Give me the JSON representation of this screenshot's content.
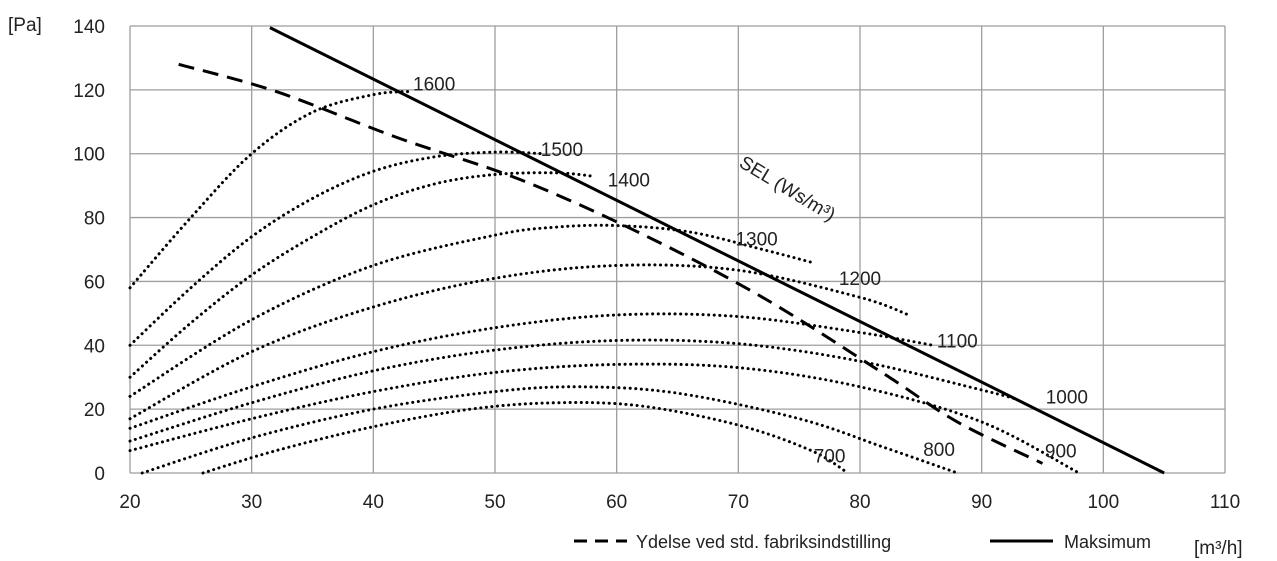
{
  "chart_data": {
    "type": "line",
    "title": "",
    "y_unit": "[Pa]",
    "x_unit": "[m³/h]",
    "xlim": [
      20,
      110
    ],
    "ylim": [
      0,
      140
    ],
    "x_ticks": [
      "20",
      "30",
      "40",
      "50",
      "60",
      "70",
      "80",
      "90",
      "100",
      "110"
    ],
    "y_ticks": [
      "0",
      "20",
      "40",
      "60",
      "80",
      "100",
      "120",
      "140"
    ],
    "grid": true,
    "colors": {
      "line": "#000000",
      "grid": "#9e9e9e"
    },
    "legend": {
      "position": "bottom-right",
      "dashed_label": "Ydelse ved std. fabriksindstilling",
      "solid_label": "Maksimum"
    },
    "sel_label": "SEL (Ws/m³)",
    "series": [
      {
        "name": "Maksimum",
        "style": "solid",
        "points": [
          [
            31.5,
            139.5
          ],
          [
            105,
            0
          ]
        ]
      },
      {
        "name": "Ydelse ved std. fabriksindstilling",
        "style": "dashed",
        "points": [
          [
            24,
            128
          ],
          [
            32,
            119.5
          ],
          [
            42,
            105
          ],
          [
            52,
            92
          ],
          [
            62,
            75
          ],
          [
            72,
            55
          ],
          [
            82,
            31
          ],
          [
            88,
            16
          ],
          [
            95,
            3
          ]
        ]
      },
      {
        "name": "fan-curve-1",
        "style": "dotted",
        "points": [
          [
            20,
            58
          ],
          [
            25,
            80
          ],
          [
            30,
            100
          ],
          [
            35,
            113
          ],
          [
            40,
            118.5
          ],
          [
            43,
            119.5
          ]
        ]
      },
      {
        "name": "fan-curve-2",
        "style": "dotted",
        "points": [
          [
            20,
            40
          ],
          [
            25,
            58
          ],
          [
            30,
            74
          ],
          [
            35,
            86
          ],
          [
            40,
            94.5
          ],
          [
            45,
            99
          ],
          [
            50,
            100.5
          ],
          [
            54,
            100
          ]
        ]
      },
      {
        "name": "fan-curve-3",
        "style": "dotted",
        "points": [
          [
            20,
            30
          ],
          [
            25,
            47
          ],
          [
            30,
            62
          ],
          [
            35,
            74
          ],
          [
            40,
            84
          ],
          [
            45,
            90.5
          ],
          [
            50,
            93.5
          ],
          [
            55,
            94
          ],
          [
            58,
            93
          ]
        ]
      },
      {
        "name": "fan-curve-4",
        "style": "dotted",
        "points": [
          [
            20,
            24
          ],
          [
            30,
            48
          ],
          [
            40,
            65
          ],
          [
            50,
            74.5
          ],
          [
            55,
            77
          ],
          [
            60,
            77.5
          ],
          [
            66,
            75.5
          ],
          [
            72,
            70
          ],
          [
            76,
            66
          ]
        ]
      },
      {
        "name": "fan-curve-5",
        "style": "dotted",
        "points": [
          [
            20,
            17
          ],
          [
            30,
            38
          ],
          [
            40,
            52
          ],
          [
            50,
            61
          ],
          [
            60,
            65
          ],
          [
            70,
            63.5
          ],
          [
            80,
            55
          ],
          [
            84,
            49.5
          ]
        ]
      },
      {
        "name": "fan-curve-6",
        "style": "dotted",
        "points": [
          [
            20,
            14
          ],
          [
            30,
            27
          ],
          [
            40,
            38
          ],
          [
            50,
            45.5
          ],
          [
            60,
            49.5
          ],
          [
            70,
            49
          ],
          [
            80,
            44
          ],
          [
            86,
            40
          ]
        ]
      },
      {
        "name": "fan-curve-7",
        "style": "dotted",
        "points": [
          [
            20,
            10
          ],
          [
            30,
            22
          ],
          [
            40,
            32
          ],
          [
            50,
            38.5
          ],
          [
            60,
            41.5
          ],
          [
            70,
            40.5
          ],
          [
            80,
            35
          ],
          [
            90,
            26
          ],
          [
            93,
            23
          ]
        ]
      },
      {
        "name": "fan-curve-8",
        "style": "dotted",
        "points": [
          [
            20,
            7
          ],
          [
            30,
            17
          ],
          [
            40,
            25.5
          ],
          [
            50,
            31.5
          ],
          [
            60,
            34
          ],
          [
            70,
            33
          ],
          [
            80,
            27
          ],
          [
            90,
            16
          ],
          [
            98,
            0
          ]
        ]
      },
      {
        "name": "fan-curve-9",
        "style": "dotted",
        "points": [
          [
            21,
            0
          ],
          [
            30,
            11
          ],
          [
            40,
            20
          ],
          [
            50,
            25.5
          ],
          [
            57,
            27
          ],
          [
            65,
            25
          ],
          [
            75,
            17
          ],
          [
            82,
            8
          ],
          [
            88,
            0
          ]
        ]
      },
      {
        "name": "fan-curve-10",
        "style": "dotted",
        "points": [
          [
            26,
            0
          ],
          [
            32,
            7
          ],
          [
            40,
            14.5
          ],
          [
            48,
            20
          ],
          [
            55,
            22
          ],
          [
            62,
            21
          ],
          [
            70,
            15
          ],
          [
            76,
            7
          ],
          [
            79,
            0
          ]
        ]
      }
    ],
    "curve_labels": [
      {
        "text": "1600",
        "x": 45,
        "y": 122
      },
      {
        "text": "1500",
        "x": 55.5,
        "y": 101.5
      },
      {
        "text": "1400",
        "x": 61,
        "y": 92
      },
      {
        "text": "1300",
        "x": 71.5,
        "y": 73.5
      },
      {
        "text": "1200",
        "x": 80,
        "y": 61
      },
      {
        "text": "1100",
        "x": 88,
        "y": 41.5
      },
      {
        "text": "1000",
        "x": 97,
        "y": 24
      },
      {
        "text": "900",
        "x": 96.5,
        "y": 7
      },
      {
        "text": "800",
        "x": 86.5,
        "y": 7.5
      },
      {
        "text": "700",
        "x": 77.5,
        "y": 5.5
      }
    ]
  }
}
